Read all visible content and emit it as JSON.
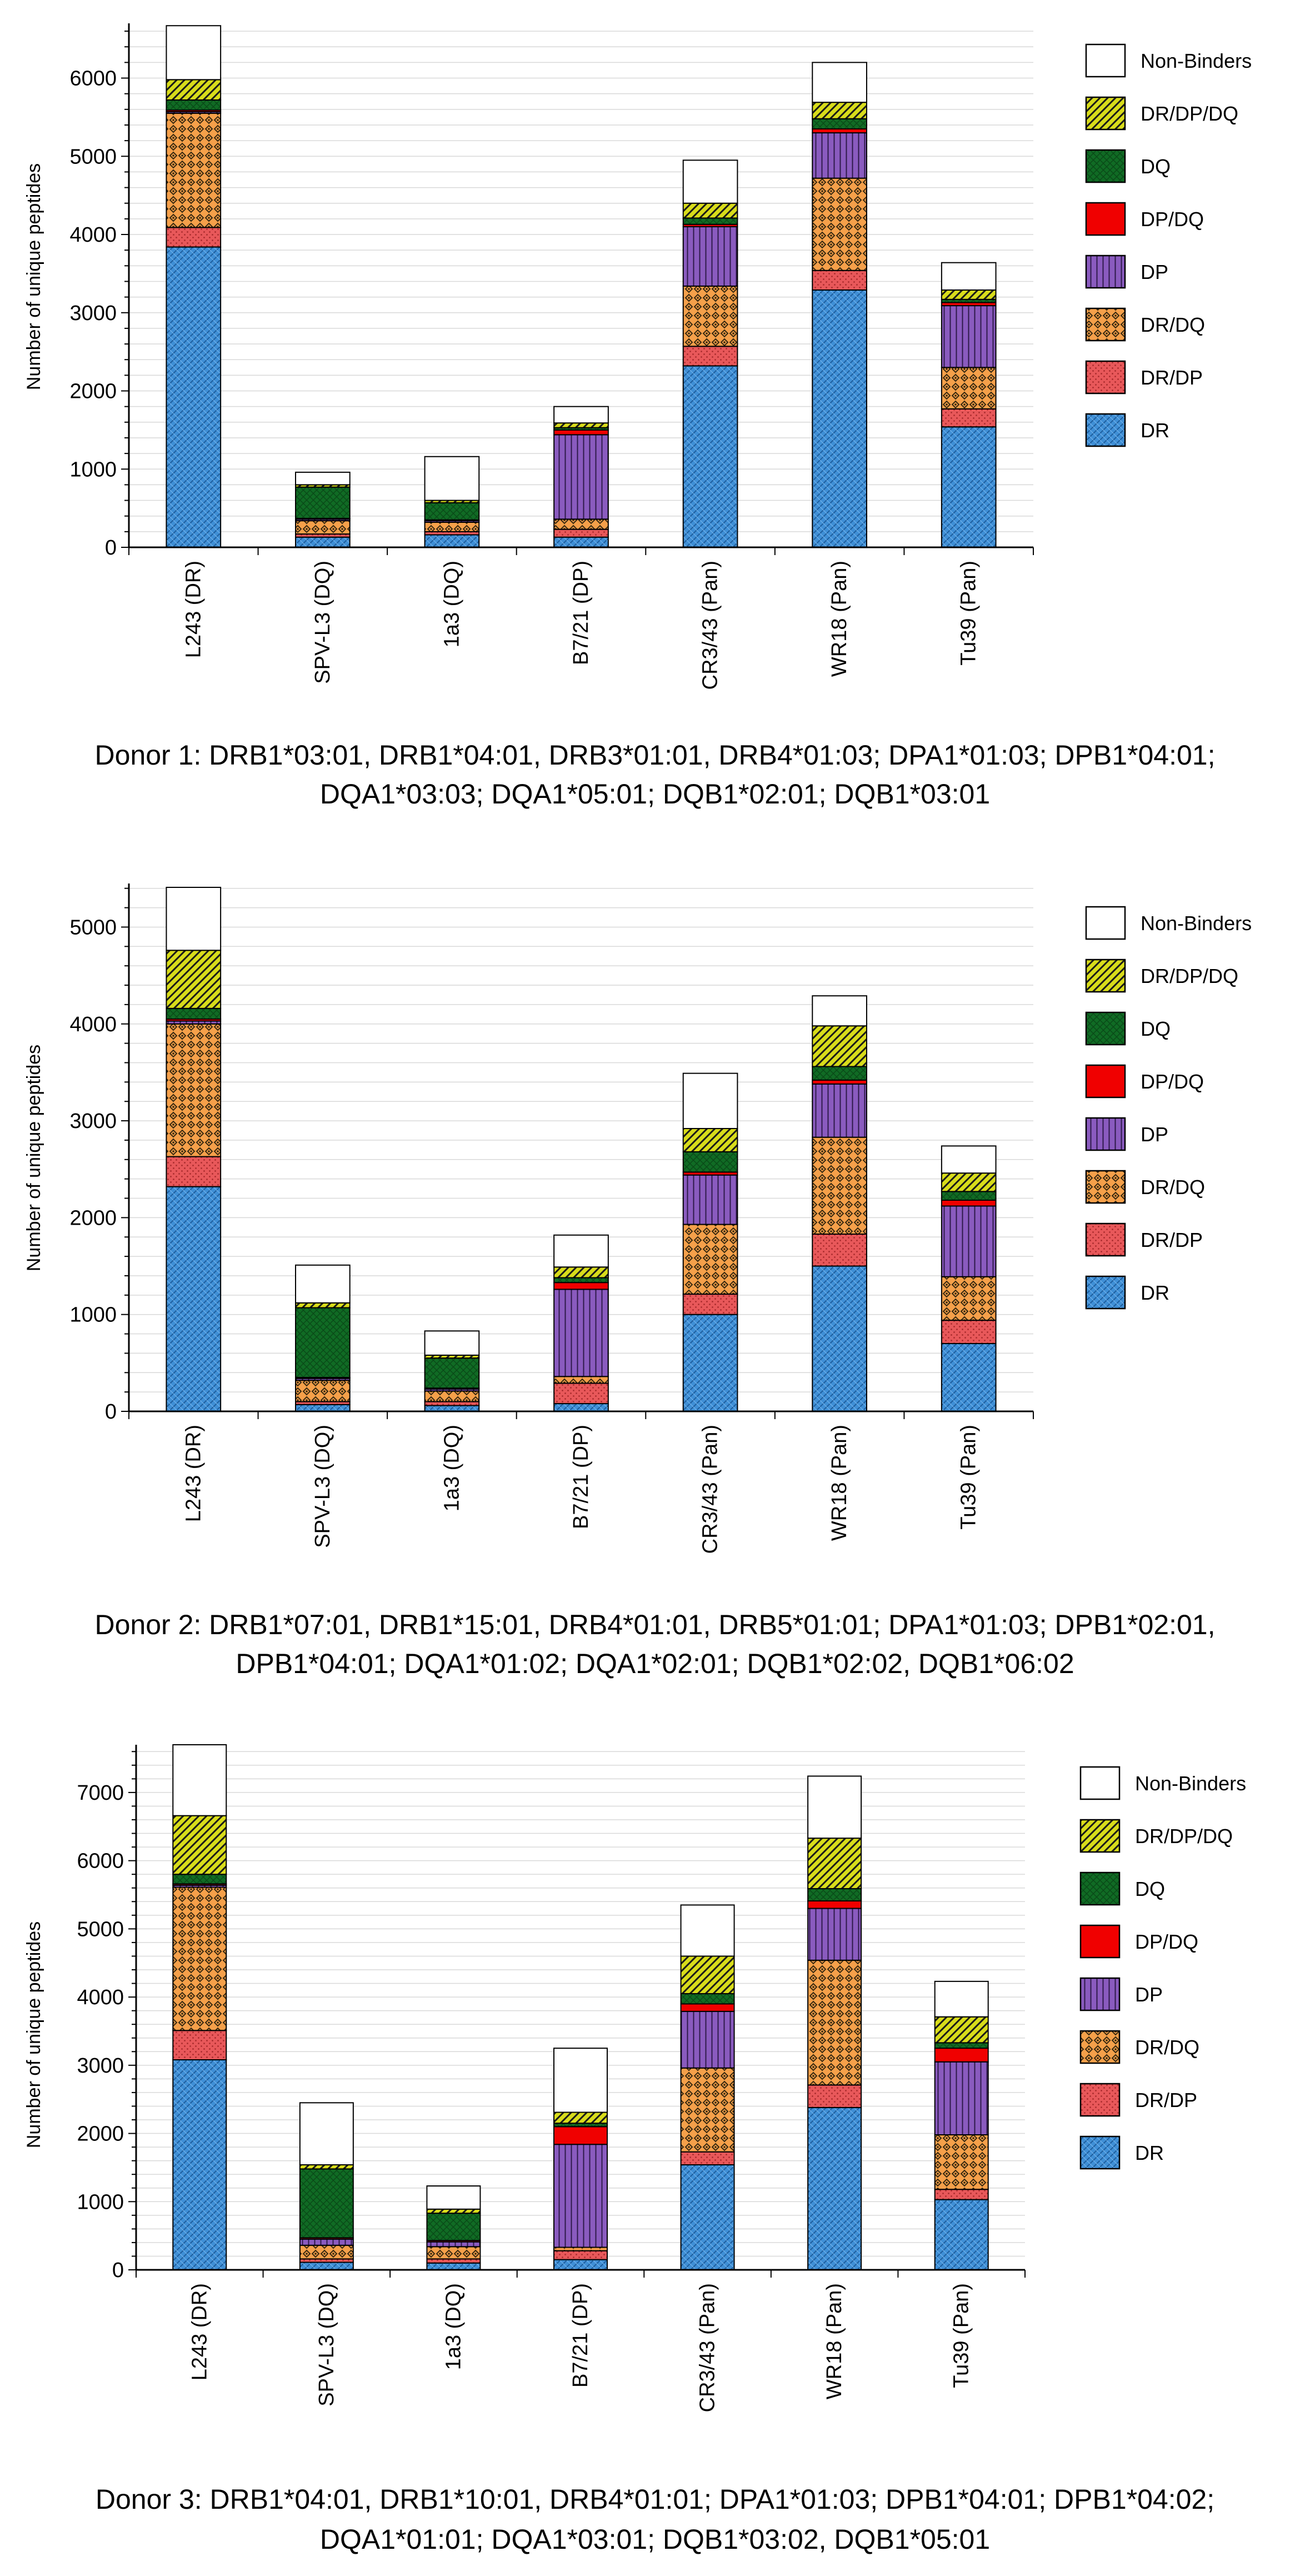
{
  "colors": {
    "DR": "#3f8fd6",
    "DR/DP": "#e8585a",
    "DR/DQ": "#f5a04a",
    "DP": "#8a5bbf",
    "DP/DQ": "#f00000",
    "DQ": "#106b24",
    "DR/DP/DQ": "#d8dc1a",
    "Non-Binders": "#ffffff",
    "grid": "#d9d9d9"
  },
  "chart_data": [
    {
      "type": "bar",
      "stacked": true,
      "ylabel": "Number of unique peptides",
      "ylim": [
        0,
        6700
      ],
      "yticks": [
        0,
        1000,
        2000,
        3000,
        4000,
        5000,
        6000
      ],
      "legend_position": "right",
      "legend": [
        "Non-Binders",
        "DR/DP/DQ",
        "DQ",
        "DP/DQ",
        "DP",
        "DR/DQ",
        "DR/DP",
        "DR"
      ],
      "categories": [
        "L243 (DR)",
        "SPV-L3 (DQ)",
        "1a3 (DQ)",
        "B7/21 (DP)",
        "CR3/43 (Pan)",
        "WR18 (Pan)",
        "Tu39 (Pan)"
      ],
      "series": [
        {
          "name": "DR",
          "values": [
            3840,
            130,
            160,
            130,
            2320,
            3290,
            1540
          ]
        },
        {
          "name": "DR/DP",
          "values": [
            250,
            40,
            40,
            100,
            250,
            250,
            230
          ]
        },
        {
          "name": "DR/DQ",
          "values": [
            1460,
            170,
            120,
            130,
            770,
            1180,
            530
          ]
        },
        {
          "name": "DP",
          "values": [
            20,
            20,
            20,
            1080,
            760,
            580,
            790
          ]
        },
        {
          "name": "DP/DQ",
          "values": [
            20,
            10,
            10,
            60,
            30,
            50,
            40
          ]
        },
        {
          "name": "DQ",
          "values": [
            130,
            400,
            220,
            30,
            80,
            130,
            40
          ]
        },
        {
          "name": "DR/DP/DQ",
          "values": [
            260,
            30,
            30,
            60,
            190,
            210,
            120
          ]
        },
        {
          "name": "Non-Binders",
          "values": [
            690,
            160,
            560,
            210,
            550,
            510,
            350
          ]
        }
      ],
      "caption_lines": [
        "Donor 1: DRB1*03:01, DRB1*04:01, DRB3*01:01, DRB4*01:03; DPA1*01:03; DPB1*04:01;",
        "DQA1*03:03; DQA1*05:01; DQB1*02:01; DQB1*03:01"
      ]
    },
    {
      "type": "bar",
      "stacked": true,
      "ylabel": "Number of unique peptides",
      "ylim": [
        0,
        5450
      ],
      "yticks": [
        0,
        1000,
        2000,
        3000,
        4000,
        5000
      ],
      "legend_position": "right",
      "legend": [
        "Non-Binders",
        "DR/DP/DQ",
        "DQ",
        "DP/DQ",
        "DP",
        "DR/DQ",
        "DR/DP",
        "DR"
      ],
      "categories": [
        "L243 (DR)",
        "SPV-L3 (DQ)",
        "1a3 (DQ)",
        "B7/21 (DP)",
        "CR3/43 (Pan)",
        "WR18 (Pan)",
        "Tu39 (Pan)"
      ],
      "series": [
        {
          "name": "DR",
          "values": [
            2320,
            70,
            60,
            80,
            1000,
            1500,
            700
          ]
        },
        {
          "name": "DR/DP",
          "values": [
            310,
            30,
            40,
            210,
            210,
            330,
            240
          ]
        },
        {
          "name": "DR/DQ",
          "values": [
            1370,
            220,
            110,
            70,
            720,
            1000,
            450
          ]
        },
        {
          "name": "DP",
          "values": [
            30,
            20,
            20,
            900,
            510,
            550,
            730
          ]
        },
        {
          "name": "DP/DQ",
          "values": [
            20,
            10,
            10,
            70,
            30,
            40,
            60
          ]
        },
        {
          "name": "DQ",
          "values": [
            110,
            720,
            310,
            50,
            210,
            140,
            90
          ]
        },
        {
          "name": "DR/DP/DQ",
          "values": [
            600,
            50,
            30,
            110,
            240,
            420,
            190
          ]
        },
        {
          "name": "Non-Binders",
          "values": [
            650,
            390,
            250,
            330,
            570,
            310,
            280
          ]
        }
      ],
      "caption_lines": [
        "Donor 2: DRB1*07:01, DRB1*15:01, DRB4*01:01, DRB5*01:01; DPA1*01:03; DPB1*02:01,",
        "DPB1*04:01; DQA1*01:02; DQA1*02:01; DQB1*02:02, DQB1*06:02"
      ]
    },
    {
      "type": "bar",
      "stacked": true,
      "ylabel": "Number of unique peptides",
      "ylim": [
        0,
        7700
      ],
      "yticks": [
        0,
        1000,
        2000,
        3000,
        4000,
        5000,
        6000,
        7000
      ],
      "legend_position": "right",
      "legend": [
        "Non-Binders",
        "DR/DP/DQ",
        "DQ",
        "DP/DQ",
        "DP",
        "DR/DQ",
        "DR/DP",
        "DR"
      ],
      "categories": [
        "L243 (DR)",
        "SPV-L3 (DQ)",
        "1a3 (DQ)",
        "B7/21 (DP)",
        "CR3/43 (Pan)",
        "WR18 (Pan)",
        "Tu39 (Pan)"
      ],
      "series": [
        {
          "name": "DR",
          "values": [
            3080,
            110,
            100,
            150,
            1540,
            2380,
            1030
          ]
        },
        {
          "name": "DR/DP",
          "values": [
            430,
            50,
            60,
            130,
            190,
            330,
            150
          ]
        },
        {
          "name": "DR/DQ",
          "values": [
            2100,
            200,
            180,
            50,
            1230,
            1830,
            800
          ]
        },
        {
          "name": "DP",
          "values": [
            30,
            90,
            70,
            1510,
            830,
            760,
            1070
          ]
        },
        {
          "name": "DP/DQ",
          "values": [
            20,
            20,
            20,
            260,
            110,
            110,
            200
          ]
        },
        {
          "name": "DQ",
          "values": [
            140,
            1010,
            400,
            50,
            150,
            180,
            80
          ]
        },
        {
          "name": "DR/DP/DQ",
          "values": [
            860,
            60,
            60,
            160,
            550,
            740,
            380
          ]
        },
        {
          "name": "Non-Binders",
          "values": [
            1040,
            910,
            340,
            940,
            750,
            910,
            520
          ]
        }
      ],
      "caption_lines": [
        "Donor 3: DRB1*04:01, DRB1*10:01, DRB4*01:01; DPA1*01:03; DPB1*04:01; DPB1*04:02;",
        "DQA1*01:01; DQA1*03:01; DQB1*03:02, DQB1*05:01"
      ]
    }
  ]
}
